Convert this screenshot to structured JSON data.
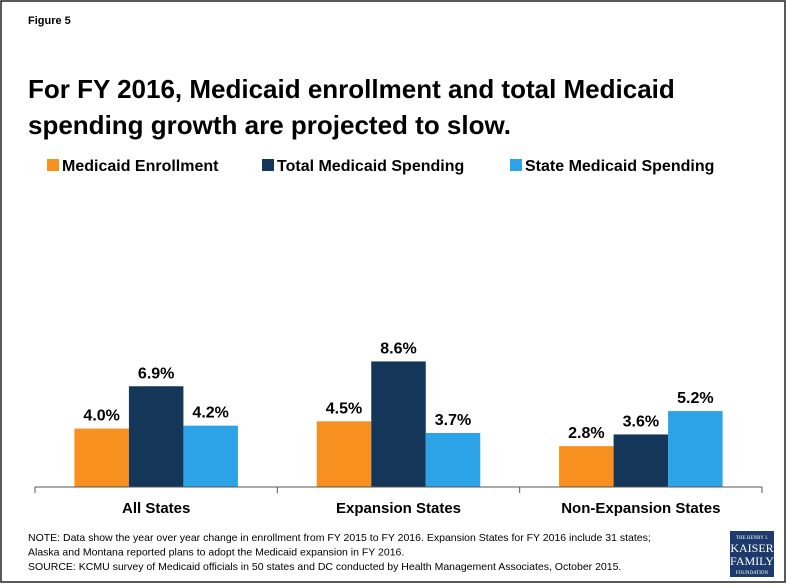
{
  "chart_data": {
    "type": "bar",
    "figure_label": "Figure 5",
    "title": [
      "For FY 2016, Medicaid enrollment and total Medicaid",
      "spending growth are projected to slow."
    ],
    "categories": [
      "All States",
      "Expansion States",
      "Non-Expansion States"
    ],
    "series": [
      {
        "name": "Medicaid Enrollment",
        "color": "#f7901e",
        "values": [
          4.0,
          4.5,
          2.8
        ],
        "value_labels": [
          "4.0%",
          "4.5%",
          "2.8%"
        ]
      },
      {
        "name": "Total Medicaid Spending",
        "color": "#143658",
        "values": [
          6.9,
          8.6,
          3.6
        ],
        "value_labels": [
          "6.9%",
          "8.6%",
          "3.6%"
        ]
      },
      {
        "name": "State Medicaid Spending",
        "color": "#2ba3e6",
        "values": [
          4.2,
          3.7,
          5.2
        ],
        "value_labels": [
          "4.2%",
          "3.7%",
          "5.2%"
        ]
      }
    ],
    "legend": "top",
    "notes": [
      "NOTE: Data show the year over year change in enrollment from FY 2015 to FY 2016. Expansion States for FY 2016 include 31 states;",
      "Alaska and Montana reported plans to adopt the Medicaid expansion in FY 2016.",
      "SOURCE: KCMU survey of Medicaid officials in 50 states and DC conducted by Health Management Associates, October 2015."
    ],
    "logo": [
      "THE HENRY J.",
      "KAISER",
      "FAMILY",
      "FOUNDATION"
    ]
  }
}
